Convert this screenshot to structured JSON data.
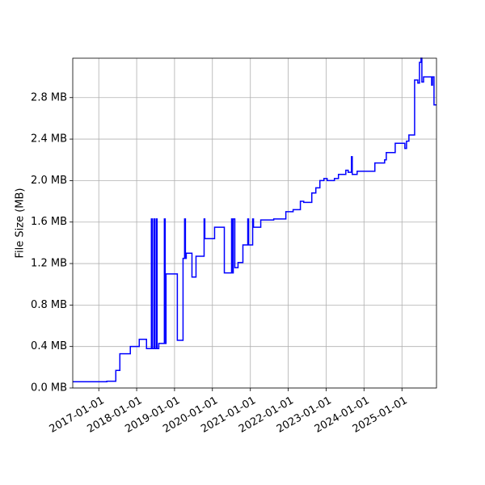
{
  "chart_data": {
    "type": "line",
    "drawstyle": "steps-post",
    "ylabel": "File Size (MB)",
    "grid": true,
    "xlim": [
      "2016-04-25",
      "2025-11-30"
    ],
    "xticks": [
      "2017-01-01",
      "2018-01-01",
      "2019-01-01",
      "2020-01-01",
      "2021-01-01",
      "2022-01-01",
      "2023-01-01",
      "2024-01-01",
      "2025-01-01"
    ],
    "ylim": [
      0,
      3.18
    ],
    "yticks": [
      {
        "value": 0,
        "label": "0.0 MB"
      },
      {
        "value": 0.4,
        "label": "0.4 MB"
      },
      {
        "value": 0.8,
        "label": "0.8 MB"
      },
      {
        "value": 1.2,
        "label": "1.2 MB"
      },
      {
        "value": 1.6,
        "label": "1.6 MB"
      },
      {
        "value": 2.0,
        "label": "2.0 MB"
      },
      {
        "value": 2.4,
        "label": "2.4 MB"
      },
      {
        "value": 2.8,
        "label": "2.8 MB"
      }
    ],
    "x": [
      "2016-04-25",
      "2017-03-20",
      "2017-06-14",
      "2017-07-23",
      "2017-11-01",
      "2018-01-26",
      "2018-04-06",
      "2018-05-23",
      "2018-05-31",
      "2018-06-16",
      "2018-06-24",
      "2018-07-09",
      "2018-07-17",
      "2018-08-02",
      "2018-09-25",
      "2018-10-03",
      "2018-10-11",
      "2019-01-28",
      "2019-03-24",
      "2019-04-08",
      "2019-04-16",
      "2019-04-24",
      "2019-06-18",
      "2019-07-27",
      "2019-10-13",
      "2019-10-20",
      "2020-01-22",
      "2020-04-25",
      "2020-07-04",
      "2020-07-12",
      "2020-07-20",
      "2020-08-04",
      "2020-09-04",
      "2020-10-21",
      "2020-12-07",
      "2020-12-15",
      "2021-01-23",
      "2021-01-31",
      "2021-04-11",
      "2021-08-14",
      "2021-12-09",
      "2022-02-17",
      "2022-04-28",
      "2022-05-30",
      "2022-08-16",
      "2022-09-24",
      "2022-11-02",
      "2022-12-11",
      "2023-01-11",
      "2023-03-22",
      "2023-04-30",
      "2023-07-10",
      "2023-08-02",
      "2023-09-02",
      "2023-09-10",
      "2023-10-27",
      "2024-04-15",
      "2024-07-18",
      "2024-08-03",
      "2024-10-28",
      "2025-01-29",
      "2025-02-14",
      "2025-03-09",
      "2025-05-03",
      "2025-06-03",
      "2025-06-19",
      "2025-07-04",
      "2025-07-12",
      "2025-07-28",
      "2025-10-14",
      "2025-10-22",
      "2025-11-06",
      "2025-11-30"
    ],
    "series": [
      {
        "color": "#0000ff",
        "values": [
          0.06,
          0.065,
          0.17,
          0.33,
          0.4,
          0.47,
          0.38,
          1.63,
          0.38,
          1.63,
          0.38,
          1.63,
          0.38,
          0.43,
          1.63,
          0.43,
          1.1,
          0.46,
          1.25,
          1.63,
          1.25,
          1.3,
          1.07,
          1.27,
          1.63,
          1.44,
          1.55,
          1.11,
          1.63,
          1.11,
          1.63,
          1.16,
          1.21,
          1.38,
          1.63,
          1.38,
          1.63,
          1.55,
          1.62,
          1.63,
          1.7,
          1.72,
          1.8,
          1.79,
          1.88,
          1.93,
          2.0,
          2.02,
          2.0,
          2.02,
          2.06,
          2.1,
          2.08,
          2.23,
          2.06,
          2.09,
          2.17,
          2.2,
          2.27,
          2.36,
          2.31,
          2.38,
          2.44,
          2.97,
          2.94,
          3.14,
          3.18,
          2.95,
          3.0,
          2.92,
          3.0,
          2.73,
          2.73
        ]
      }
    ]
  }
}
